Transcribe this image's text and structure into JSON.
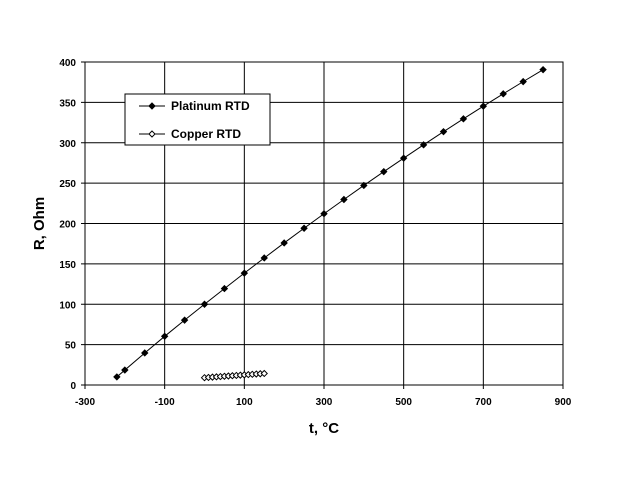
{
  "chart_data": {
    "type": "line",
    "title": "",
    "xlabel": "t,  °C",
    "ylabel": "R, Ohm",
    "xlim": [
      -300,
      900
    ],
    "ylim": [
      0,
      400
    ],
    "x_ticks": [
      -300,
      -100,
      100,
      300,
      500,
      700,
      900
    ],
    "y_ticks": [
      0,
      50,
      100,
      150,
      200,
      250,
      300,
      350,
      400
    ],
    "grid": true,
    "legend_position": "top-left",
    "series": [
      {
        "name": "Platinum RTD",
        "marker": "filled-diamond",
        "color": "#000000",
        "x": [
          -220,
          -200,
          -150,
          -100,
          -50,
          0,
          50,
          100,
          150,
          200,
          250,
          300,
          350,
          400,
          450,
          500,
          550,
          600,
          650,
          700,
          750,
          800,
          850
        ],
        "y": [
          10,
          18.5,
          39.7,
          60.3,
          80.3,
          100,
          119.4,
          138.5,
          157.3,
          175.9,
          194.1,
          212.1,
          229.7,
          247.1,
          264.2,
          280.9,
          297.4,
          313.7,
          329.6,
          345.3,
          360.6,
          375.7,
          390.5
        ]
      },
      {
        "name": "Copper RTD",
        "marker": "open-diamond",
        "color": "#000000",
        "x": [
          0,
          10,
          20,
          30,
          40,
          50,
          60,
          70,
          80,
          90,
          100,
          110,
          120,
          130,
          140,
          150
        ],
        "y": [
          9.04,
          9.39,
          9.74,
          10.09,
          10.44,
          10.79,
          11.14,
          11.49,
          11.84,
          12.19,
          12.54,
          12.89,
          13.24,
          13.59,
          13.94,
          14.29
        ]
      }
    ]
  }
}
